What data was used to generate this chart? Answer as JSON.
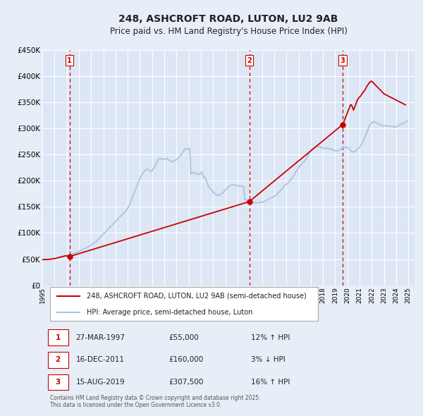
{
  "title": "248, ASHCROFT ROAD, LUTON, LU2 9AB",
  "subtitle": "Price paid vs. HM Land Registry's House Price Index (HPI)",
  "bg_color": "#e8eef7",
  "plot_bg_color": "#dce6f5",
  "grid_color": "#ffffff",
  "ylabel": "",
  "ylim": [
    0,
    450000
  ],
  "yticks": [
    0,
    50000,
    100000,
    150000,
    200000,
    250000,
    300000,
    350000,
    400000,
    450000
  ],
  "ytick_labels": [
    "£0",
    "£50K",
    "£100K",
    "£150K",
    "£200K",
    "£250K",
    "£300K",
    "£350K",
    "£400K",
    "£450K"
  ],
  "xlim_start": 1995.0,
  "xlim_end": 2025.5,
  "xtick_years": [
    1995,
    1996,
    1997,
    1998,
    1999,
    2000,
    2001,
    2002,
    2003,
    2004,
    2005,
    2006,
    2007,
    2008,
    2009,
    2010,
    2011,
    2012,
    2013,
    2014,
    2015,
    2016,
    2017,
    2018,
    2019,
    2020,
    2021,
    2022,
    2023,
    2024,
    2025
  ],
  "hpi_color": "#aac4e0",
  "sale_color": "#cc0000",
  "sale_dot_color": "#cc0000",
  "vline_color": "#cc0000",
  "purchases": [
    {
      "date_num": 1997.23,
      "price": 55000,
      "label": "1",
      "pct": "12%",
      "dir": "↑",
      "date_str": "27-MAR-1997"
    },
    {
      "date_num": 2011.96,
      "price": 160000,
      "label": "2",
      "pct": "3%",
      "dir": "↓",
      "date_str": "16-DEC-2011"
    },
    {
      "date_num": 2019.62,
      "price": 307500,
      "label": "3",
      "pct": "16%",
      "dir": "↑",
      "date_str": "15-AUG-2019"
    }
  ],
  "legend_line1": "248, ASHCROFT ROAD, LUTON, LU2 9AB (semi-detached house)",
  "legend_line2": "HPI: Average price, semi-detached house, Luton",
  "table_rows": [
    {
      "num": "1",
      "date": "27-MAR-1997",
      "price": "£55,000",
      "pct": "12% ↑ HPI"
    },
    {
      "num": "2",
      "date": "16-DEC-2011",
      "price": "£160,000",
      "pct": "3% ↓ HPI"
    },
    {
      "num": "3",
      "date": "15-AUG-2019",
      "price": "£307,500",
      "pct": "16% ↑ HPI"
    }
  ],
  "footnote": "Contains HM Land Registry data © Crown copyright and database right 2025.\nThis data is licensed under the Open Government Licence v3.0.",
  "hpi_data": {
    "x": [
      1995.0,
      1995.08,
      1995.17,
      1995.25,
      1995.33,
      1995.42,
      1995.5,
      1995.58,
      1995.67,
      1995.75,
      1995.83,
      1995.92,
      1996.0,
      1996.08,
      1996.17,
      1996.25,
      1996.33,
      1996.42,
      1996.5,
      1996.58,
      1996.67,
      1996.75,
      1996.83,
      1996.92,
      1997.0,
      1997.08,
      1997.17,
      1997.25,
      1997.33,
      1997.42,
      1997.5,
      1997.58,
      1997.67,
      1997.75,
      1997.83,
      1997.92,
      1998.0,
      1998.08,
      1998.17,
      1998.25,
      1998.33,
      1998.42,
      1998.5,
      1998.58,
      1998.67,
      1998.75,
      1998.83,
      1998.92,
      1999.0,
      1999.08,
      1999.17,
      1999.25,
      1999.33,
      1999.42,
      1999.5,
      1999.58,
      1999.67,
      1999.75,
      1999.83,
      1999.92,
      2000.0,
      2000.08,
      2000.17,
      2000.25,
      2000.33,
      2000.42,
      2000.5,
      2000.58,
      2000.67,
      2000.75,
      2000.83,
      2000.92,
      2001.0,
      2001.08,
      2001.17,
      2001.25,
      2001.33,
      2001.42,
      2001.5,
      2001.58,
      2001.67,
      2001.75,
      2001.83,
      2001.92,
      2002.0,
      2002.08,
      2002.17,
      2002.25,
      2002.33,
      2002.42,
      2002.5,
      2002.58,
      2002.67,
      2002.75,
      2002.83,
      2002.92,
      2003.0,
      2003.08,
      2003.17,
      2003.25,
      2003.33,
      2003.42,
      2003.5,
      2003.58,
      2003.67,
      2003.75,
      2003.83,
      2003.92,
      2004.0,
      2004.08,
      2004.17,
      2004.25,
      2004.33,
      2004.42,
      2004.5,
      2004.58,
      2004.67,
      2004.75,
      2004.83,
      2004.92,
      2005.0,
      2005.08,
      2005.17,
      2005.25,
      2005.33,
      2005.42,
      2005.5,
      2005.58,
      2005.67,
      2005.75,
      2005.83,
      2005.92,
      2006.0,
      2006.08,
      2006.17,
      2006.25,
      2006.33,
      2006.42,
      2006.5,
      2006.58,
      2006.67,
      2006.75,
      2006.83,
      2006.92,
      2007.0,
      2007.08,
      2007.17,
      2007.25,
      2007.33,
      2007.42,
      2007.5,
      2007.58,
      2007.67,
      2007.75,
      2007.83,
      2007.92,
      2008.0,
      2008.08,
      2008.17,
      2008.25,
      2008.33,
      2008.42,
      2008.5,
      2008.58,
      2008.67,
      2008.75,
      2008.83,
      2008.92,
      2009.0,
      2009.08,
      2009.17,
      2009.25,
      2009.33,
      2009.42,
      2009.5,
      2009.58,
      2009.67,
      2009.75,
      2009.83,
      2009.92,
      2010.0,
      2010.08,
      2010.17,
      2010.25,
      2010.33,
      2010.42,
      2010.5,
      2010.58,
      2010.67,
      2010.75,
      2010.83,
      2010.92,
      2011.0,
      2011.08,
      2011.17,
      2011.25,
      2011.33,
      2011.42,
      2011.5,
      2011.58,
      2011.67,
      2011.75,
      2011.83,
      2011.92,
      2012.0,
      2012.08,
      2012.17,
      2012.25,
      2012.33,
      2012.42,
      2012.5,
      2012.58,
      2012.67,
      2012.75,
      2012.83,
      2012.92,
      2013.0,
      2013.08,
      2013.17,
      2013.25,
      2013.33,
      2013.42,
      2013.5,
      2013.58,
      2013.67,
      2013.75,
      2013.83,
      2013.92,
      2014.0,
      2014.08,
      2014.17,
      2014.25,
      2014.33,
      2014.42,
      2014.5,
      2014.58,
      2014.67,
      2014.75,
      2014.83,
      2014.92,
      2015.0,
      2015.08,
      2015.17,
      2015.25,
      2015.33,
      2015.42,
      2015.5,
      2015.58,
      2015.67,
      2015.75,
      2015.83,
      2015.92,
      2016.0,
      2016.08,
      2016.17,
      2016.25,
      2016.33,
      2016.42,
      2016.5,
      2016.58,
      2016.67,
      2016.75,
      2016.83,
      2016.92,
      2017.0,
      2017.08,
      2017.17,
      2017.25,
      2017.33,
      2017.42,
      2017.5,
      2017.58,
      2017.67,
      2017.75,
      2017.83,
      2017.92,
      2018.0,
      2018.08,
      2018.17,
      2018.25,
      2018.33,
      2018.42,
      2018.5,
      2018.58,
      2018.67,
      2018.75,
      2018.83,
      2018.92,
      2019.0,
      2019.08,
      2019.17,
      2019.25,
      2019.33,
      2019.42,
      2019.5,
      2019.58,
      2019.67,
      2019.75,
      2019.83,
      2019.92,
      2020.0,
      2020.08,
      2020.17,
      2020.25,
      2020.33,
      2020.42,
      2020.5,
      2020.58,
      2020.67,
      2020.75,
      2020.83,
      2020.92,
      2021.0,
      2021.08,
      2021.17,
      2021.25,
      2021.33,
      2021.42,
      2021.5,
      2021.58,
      2021.67,
      2021.75,
      2021.83,
      2021.92,
      2022.0,
      2022.08,
      2022.17,
      2022.25,
      2022.33,
      2022.42,
      2022.5,
      2022.58,
      2022.67,
      2022.75,
      2022.83,
      2022.92,
      2023.0,
      2023.08,
      2023.17,
      2023.25,
      2023.33,
      2023.42,
      2023.5,
      2023.58,
      2023.67,
      2023.75,
      2023.83,
      2023.92,
      2024.0,
      2024.08,
      2024.17,
      2024.25,
      2024.33,
      2024.42,
      2024.5,
      2024.58,
      2024.67,
      2024.75,
      2024.83,
      2024.92
    ],
    "y": [
      49000,
      49200,
      49100,
      49300,
      49500,
      49400,
      49600,
      49800,
      50000,
      50200,
      50500,
      50800,
      51000,
      51500,
      52000,
      52500,
      53000,
      53500,
      54000,
      54500,
      55000,
      55500,
      56000,
      56500,
      57000,
      57500,
      58000,
      58500,
      59000,
      59500,
      60000,
      60800,
      61500,
      62300,
      63000,
      63800,
      64500,
      65500,
      66500,
      67500,
      68500,
      69500,
      70500,
      71500,
      72500,
      73500,
      74500,
      75500,
      76500,
      78000,
      79500,
      81000,
      82500,
      84000,
      86000,
      88000,
      90000,
      92000,
      94000,
      96000,
      98000,
      100000,
      102000,
      104000,
      106000,
      108000,
      110000,
      112000,
      114000,
      116000,
      118000,
      120000,
      122000,
      124000,
      126000,
      128000,
      130000,
      132000,
      134000,
      136000,
      138000,
      140000,
      142000,
      144000,
      147000,
      151000,
      155000,
      160000,
      165000,
      170000,
      175000,
      180000,
      185000,
      190000,
      195000,
      200000,
      205000,
      208000,
      211000,
      214000,
      217000,
      220000,
      221000,
      222000,
      221000,
      220000,
      219000,
      218000,
      219000,
      222000,
      225000,
      229000,
      233000,
      237000,
      240000,
      242000,
      243000,
      242000,
      241000,
      240000,
      241000,
      242000,
      242000,
      241000,
      240000,
      239000,
      238000,
      237000,
      237000,
      237000,
      238000,
      239000,
      240000,
      242000,
      244000,
      246000,
      248000,
      251000,
      254000,
      257000,
      260000,
      261000,
      261000,
      260000,
      261000,
      262000,
      213000,
      215000,
      215000,
      216000,
      214000,
      213000,
      213000,
      212000,
      213000,
      212000,
      215000,
      217000,
      208000,
      206000,
      207000,
      200000,
      198000,
      191000,
      188000,
      185000,
      183000,
      181000,
      178000,
      176000,
      175000,
      173000,
      172000,
      172000,
      173000,
      174000,
      175000,
      176000,
      178000,
      180000,
      182000,
      184000,
      186000,
      188000,
      190000,
      191000,
      192000,
      192000,
      192000,
      192000,
      191000,
      191000,
      190000,
      190000,
      190000,
      190000,
      189000,
      189000,
      189000,
      164000,
      163000,
      163000,
      162000,
      161000,
      160000,
      159000,
      158000,
      158000,
      158000,
      158000,
      158000,
      158000,
      158000,
      158000,
      158000,
      159000,
      159000,
      159000,
      160000,
      161000,
      162000,
      163000,
      164000,
      165000,
      166000,
      167000,
      168000,
      169000,
      170000,
      171000,
      173000,
      175000,
      177000,
      179000,
      181000,
      183000,
      185000,
      188000,
      190000,
      192000,
      193000,
      195000,
      197000,
      199000,
      201000,
      203000,
      206000,
      209000,
      212000,
      216000,
      219000,
      222000,
      225000,
      228000,
      230000,
      232000,
      234000,
      236000,
      238000,
      241000,
      244000,
      248000,
      251000,
      254000,
      257000,
      260000,
      262000,
      263000,
      264000,
      264000,
      265000,
      265000,
      265000,
      265000,
      264000,
      263000,
      262000,
      262000,
      262000,
      262000,
      262000,
      261000,
      261000,
      261000,
      260000,
      260000,
      259000,
      258000,
      257000,
      257000,
      257000,
      258000,
      259000,
      260000,
      261000,
      262000,
      263000,
      264000,
      264000,
      264000,
      264000,
      262000,
      260000,
      258000,
      256000,
      255000,
      255000,
      256000,
      257000,
      259000,
      261000,
      262000,
      264000,
      267000,
      270000,
      274000,
      278000,
      282000,
      287000,
      292000,
      297000,
      302000,
      306000,
      309000,
      311000,
      312000,
      312000,
      312000,
      311000,
      310000,
      309000,
      308000,
      307000,
      306000,
      305000,
      305000,
      305000,
      305000,
      305000,
      305000,
      305000,
      305000,
      304000,
      304000,
      304000,
      303000,
      303000,
      303000,
      303000,
      304000,
      305000,
      306000,
      307000,
      308000,
      309000,
      310000,
      311000,
      312000,
      313000,
      314000
    ]
  },
  "sale_data": {
    "x": [
      1995.0,
      1995.08,
      1995.17,
      1995.25,
      1995.33,
      1995.42,
      1995.5,
      1995.58,
      1995.67,
      1995.75,
      1995.83,
      1995.92,
      1996.0,
      1996.08,
      1996.17,
      1996.25,
      1996.33,
      1996.42,
      1996.5,
      1996.58,
      1996.67,
      1996.75,
      1996.83,
      1996.92,
      1997.23,
      2011.96,
      2019.62,
      2019.67,
      2019.75,
      2019.83,
      2019.92,
      2020.0,
      2020.08,
      2020.17,
      2020.25,
      2020.33,
      2020.42,
      2020.5,
      2020.58,
      2020.67,
      2020.75,
      2020.83,
      2020.92,
      2021.0,
      2021.08,
      2021.17,
      2021.25,
      2021.33,
      2021.42,
      2021.5,
      2021.58,
      2021.67,
      2021.75,
      2021.83,
      2021.92,
      2022.0,
      2022.08,
      2022.17,
      2022.25,
      2022.33,
      2022.42,
      2022.5,
      2022.58,
      2022.67,
      2022.75,
      2022.83,
      2022.92,
      2023.0,
      2023.08,
      2023.17,
      2023.25,
      2023.33,
      2023.42,
      2023.5,
      2023.58,
      2023.67,
      2023.75,
      2023.83,
      2023.92,
      2024.0,
      2024.08,
      2024.17,
      2024.25,
      2024.33,
      2024.42,
      2024.5,
      2024.58,
      2024.67,
      2024.75
    ],
    "y": [
      49000,
      49200,
      49100,
      49300,
      49500,
      49400,
      49600,
      49800,
      50000,
      50200,
      50500,
      50800,
      51000,
      51500,
      52000,
      52500,
      53000,
      53500,
      54000,
      54500,
      55000,
      55500,
      56000,
      56500,
      55000,
      160000,
      307500,
      310000,
      315000,
      320000,
      325000,
      330000,
      335000,
      340000,
      345000,
      345000,
      340000,
      335000,
      340000,
      345000,
      350000,
      355000,
      358000,
      360000,
      362000,
      365000,
      368000,
      370000,
      373000,
      376000,
      380000,
      383000,
      386000,
      388000,
      390000,
      390000,
      388000,
      386000,
      384000,
      382000,
      380000,
      378000,
      376000,
      374000,
      372000,
      370000,
      368000,
      366000,
      365000,
      364000,
      363000,
      362000,
      361000,
      360000,
      359000,
      358000,
      357000,
      356000,
      355000,
      354000,
      353000,
      352000,
      351000,
      350000,
      349000,
      348000,
      347000,
      346000,
      345000
    ]
  }
}
